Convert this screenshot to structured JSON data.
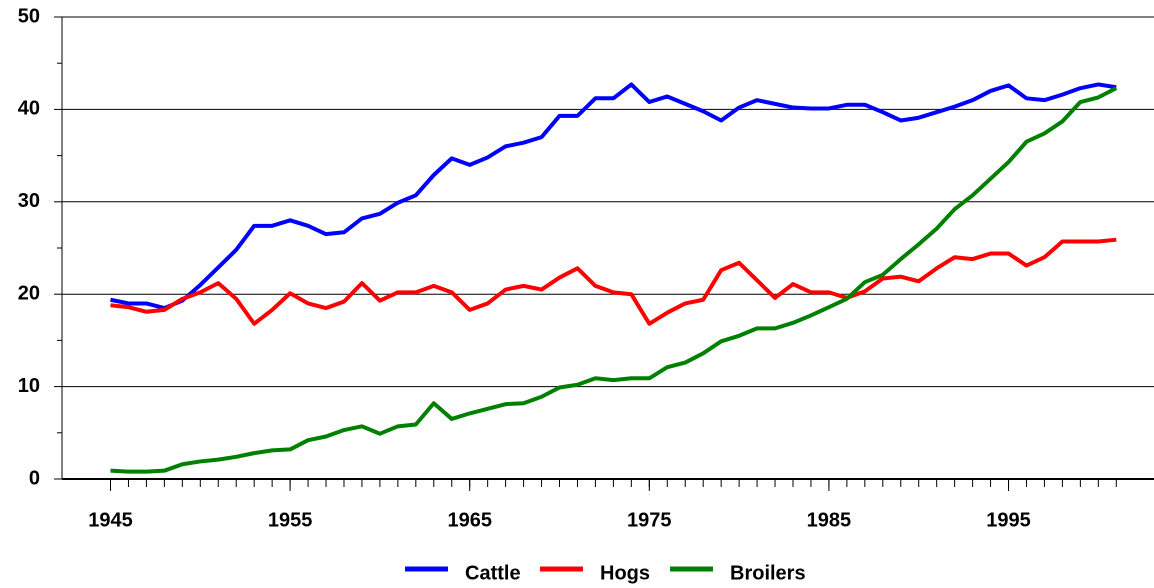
{
  "chart_data": {
    "type": "line",
    "x": [
      1945,
      1946,
      1947,
      1948,
      1949,
      1950,
      1951,
      1952,
      1953,
      1954,
      1955,
      1956,
      1957,
      1958,
      1959,
      1960,
      1961,
      1962,
      1963,
      1964,
      1965,
      1966,
      1967,
      1968,
      1969,
      1970,
      1971,
      1972,
      1973,
      1974,
      1975,
      1976,
      1977,
      1978,
      1979,
      1980,
      1981,
      1982,
      1983,
      1984,
      1985,
      1986,
      1987,
      1988,
      1989,
      1990,
      1991,
      1992,
      1993,
      1994,
      1995,
      1996,
      1997,
      1998,
      1999,
      2000,
      2001
    ],
    "series": [
      {
        "name": "Cattle",
        "color": "#0000ff",
        "values": [
          19.4,
          19.0,
          19.0,
          18.5,
          19.3,
          21.0,
          22.9,
          24.8,
          27.4,
          27.4,
          28.0,
          27.4,
          26.5,
          26.7,
          28.2,
          28.7,
          29.9,
          30.7,
          32.9,
          34.7,
          34.0,
          34.8,
          36.0,
          36.4,
          37.0,
          39.3,
          39.3,
          41.2,
          41.2,
          42.7,
          40.8,
          41.4,
          40.6,
          39.8,
          38.8,
          40.2,
          41.0,
          40.6,
          40.2,
          40.1,
          40.1,
          40.5,
          40.5,
          39.7,
          38.8,
          39.1,
          39.7,
          40.3,
          41.0,
          42.0,
          42.6,
          41.2,
          41.0,
          41.6,
          42.3,
          42.7,
          42.4
        ]
      },
      {
        "name": "Hogs",
        "color": "#ff0000",
        "values": [
          18.8,
          18.6,
          18.1,
          18.3,
          19.5,
          20.2,
          21.2,
          19.5,
          16.8,
          18.3,
          20.1,
          19.0,
          18.5,
          19.2,
          21.2,
          19.3,
          20.2,
          20.2,
          20.9,
          20.2,
          18.3,
          19.0,
          20.5,
          20.9,
          20.5,
          21.8,
          22.8,
          20.9,
          20.2,
          20.0,
          16.8,
          18.0,
          19.0,
          19.4,
          22.6,
          23.4,
          21.5,
          19.6,
          21.1,
          20.2,
          20.2,
          19.6,
          20.3,
          21.7,
          21.9,
          21.4,
          22.8,
          24.0,
          23.8,
          24.4,
          24.4,
          23.1,
          24.0,
          25.7,
          25.7,
          25.7,
          25.9
        ]
      },
      {
        "name": "Broilers",
        "color": "#008000",
        "values": [
          0.9,
          0.8,
          0.8,
          0.9,
          1.6,
          1.9,
          2.1,
          2.4,
          2.8,
          3.1,
          3.2,
          4.2,
          4.6,
          5.3,
          5.7,
          4.9,
          5.7,
          5.9,
          8.2,
          6.5,
          7.1,
          7.6,
          8.1,
          8.2,
          8.9,
          9.9,
          10.2,
          10.9,
          10.7,
          10.9,
          10.9,
          12.1,
          12.6,
          13.6,
          14.9,
          15.5,
          16.3,
          16.3,
          16.9,
          17.7,
          18.6,
          19.5,
          21.3,
          22.1,
          23.8,
          25.4,
          27.1,
          29.2,
          30.7,
          32.5,
          34.3,
          36.5,
          37.4,
          38.7,
          40.8,
          41.3,
          42.3
        ]
      }
    ],
    "xlim": [
      1942.3,
      2003.1
    ],
    "xticks": [
      1945,
      1955,
      1965,
      1975,
      1985,
      1995
    ],
    "ylim": [
      0,
      50
    ],
    "yticks": [
      0,
      10,
      20,
      30,
      40,
      50
    ],
    "grid": true,
    "legend": "bottom"
  }
}
